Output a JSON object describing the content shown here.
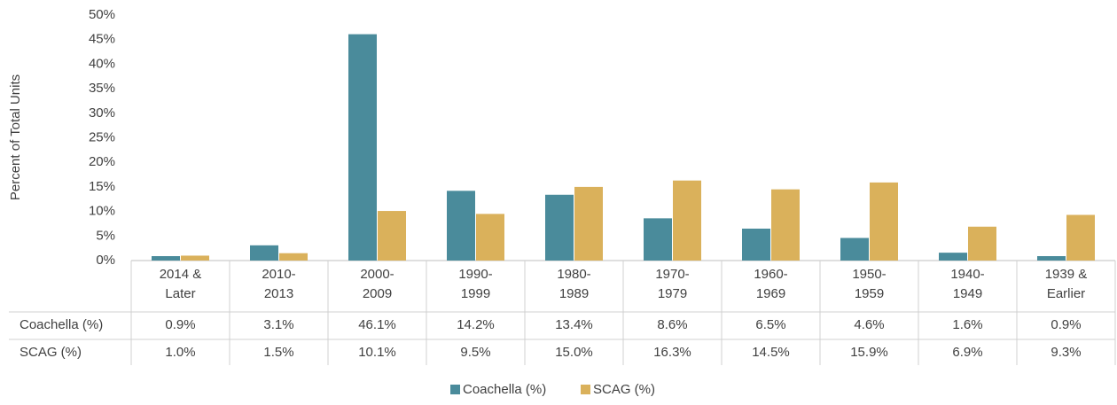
{
  "chart_data": {
    "type": "bar",
    "y_axis_label": "Percent of Total Units",
    "categories": [
      [
        "2014 &",
        "Later"
      ],
      [
        "2010-",
        "2013"
      ],
      [
        "2000-",
        "2009"
      ],
      [
        "1990-",
        "1999"
      ],
      [
        "1980-",
        "1989"
      ],
      [
        "1970-",
        "1979"
      ],
      [
        "1960-",
        "1969"
      ],
      [
        "1950-",
        "1959"
      ],
      [
        "1940-",
        "1949"
      ],
      [
        "1939 &",
        "Earlier"
      ]
    ],
    "series": [
      {
        "name": "Coachella (%)",
        "color": "#4a8b9b",
        "values": [
          0.9,
          3.1,
          46.1,
          14.2,
          13.4,
          8.6,
          6.5,
          4.6,
          1.6,
          0.9
        ],
        "value_labels": [
          "0.9%",
          "3.1%",
          "46.1%",
          "14.2%",
          "13.4%",
          "8.6%",
          "6.5%",
          "4.6%",
          "1.6%",
          "0.9%"
        ]
      },
      {
        "name": "SCAG (%)",
        "color": "#dab15b",
        "values": [
          1.0,
          1.5,
          10.1,
          9.5,
          15.0,
          16.3,
          14.5,
          15.9,
          6.9,
          9.3
        ],
        "value_labels": [
          "1.0%",
          "1.5%",
          "10.1%",
          "9.5%",
          "15.0%",
          "16.3%",
          "14.5%",
          "15.9%",
          "6.9%",
          "9.3%"
        ]
      }
    ],
    "ylim": [
      0,
      50
    ],
    "yticks": [
      {
        "value": 0,
        "label": "0%"
      },
      {
        "value": 5,
        "label": "5%"
      },
      {
        "value": 10,
        "label": "10%"
      },
      {
        "value": 15,
        "label": "15%"
      },
      {
        "value": 20,
        "label": "20%"
      },
      {
        "value": 25,
        "label": "25%"
      },
      {
        "value": 30,
        "label": "30%"
      },
      {
        "value": 35,
        "label": "35%"
      },
      {
        "value": 40,
        "label": "40%"
      },
      {
        "value": 45,
        "label": "45%"
      },
      {
        "value": 50,
        "label": "50%"
      }
    ],
    "grid": false,
    "legend": "bottom"
  }
}
